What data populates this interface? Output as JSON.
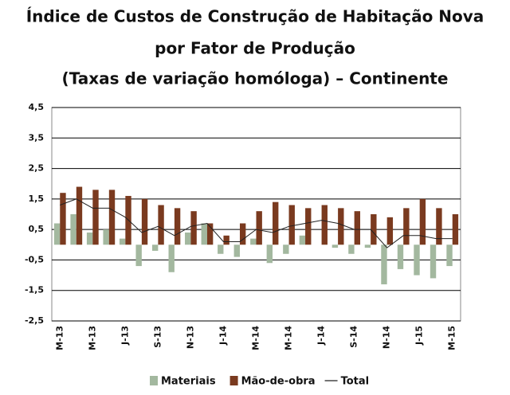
{
  "chart_data": {
    "type": "bar",
    "title": [
      "Índice de Custos de Construção de Habitação Nova",
      "por Fator de Produção",
      "(Taxas de variação homóloga) – Continente"
    ],
    "categories": [
      "M-13",
      null,
      "M-13",
      null,
      "J-13",
      null,
      "S-13",
      null,
      "N-13",
      null,
      "J-14",
      null,
      "M-14",
      null,
      "M-14",
      null,
      "J-14",
      null,
      "S-14",
      null,
      "N-14",
      null,
      "J-15",
      null,
      "M-15"
    ],
    "series": [
      {
        "name": "Materiais",
        "color": "#a3b89f",
        "kind": "bar",
        "values": [
          0.7,
          1.0,
          0.4,
          0.5,
          0.2,
          -0.7,
          -0.2,
          -0.9,
          0.4,
          0.7,
          -0.3,
          -0.4,
          0.2,
          -0.6,
          -0.3,
          0.3,
          0.0,
          -0.1,
          -0.3,
          -0.1,
          -1.3,
          -0.8,
          -1.0,
          -1.1,
          -0.7
        ]
      },
      {
        "name": "Mão-de-obra",
        "color": "#7a3a1f",
        "kind": "bar",
        "values": [
          1.7,
          1.9,
          1.8,
          1.8,
          1.6,
          1.5,
          1.3,
          1.2,
          1.1,
          0.7,
          0.3,
          0.7,
          1.1,
          1.4,
          1.3,
          1.2,
          1.3,
          1.2,
          1.1,
          1.0,
          0.9,
          1.2,
          1.5,
          1.2,
          1.0
        ]
      },
      {
        "name": "Total",
        "color": "#222222",
        "kind": "line",
        "values": [
          1.3,
          1.5,
          1.2,
          1.2,
          0.9,
          0.4,
          0.6,
          0.3,
          0.6,
          0.7,
          0.1,
          0.1,
          0.5,
          0.4,
          0.6,
          0.7,
          0.8,
          0.7,
          0.5,
          0.5,
          -0.1,
          0.3,
          0.3,
          0.2,
          0.2
        ]
      }
    ],
    "ylim": [
      -2.5,
      4.5
    ],
    "yticks": [
      {
        "value": -2.5,
        "label": "-2,5"
      },
      {
        "value": -1.5,
        "label": "-1,5"
      },
      {
        "value": -0.5,
        "label": "-0,5"
      },
      {
        "value": 0.5,
        "label": "0,5"
      },
      {
        "value": 1.5,
        "label": "1,5"
      },
      {
        "value": 2.5,
        "label": "2,5"
      },
      {
        "value": 3.5,
        "label": "3,5"
      },
      {
        "value": 4.5,
        "label": "4,5"
      }
    ],
    "grid": true,
    "legend": "bottom"
  }
}
